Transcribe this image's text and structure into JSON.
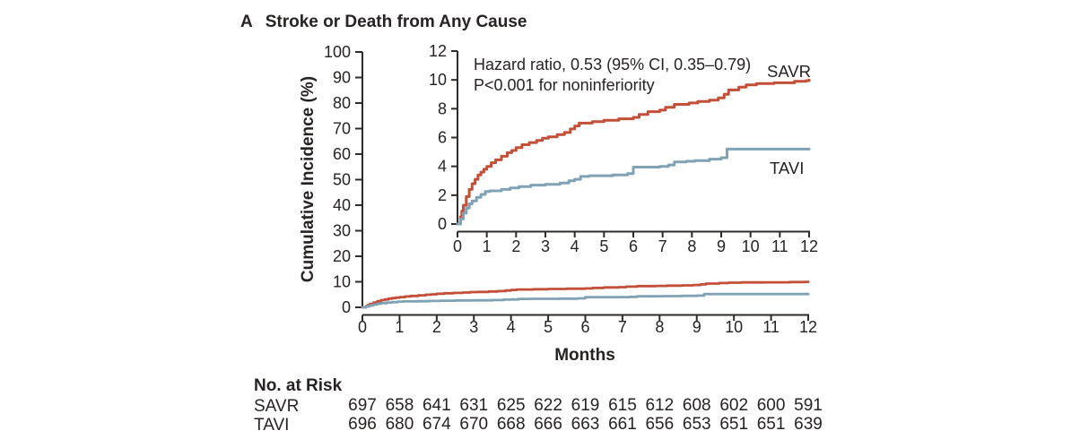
{
  "panel_label": "A",
  "title": "Stroke or Death from Any Cause",
  "annotation": {
    "line1": "Hazard ratio, 0.53 (95% CI, 0.35–0.79)",
    "line2": "P<0.001 for noninferiority"
  },
  "colors": {
    "savr": "#c44f39",
    "tavi": "#7fa3b4",
    "axis": "#2e2b29",
    "text": "#262322"
  },
  "chart_data": {
    "type": "line",
    "step": true,
    "title": "Stroke or Death from Any Cause",
    "xlabel": "Months",
    "ylabel": "Cumulative Incidence (%)",
    "main_axis": {
      "xlim": [
        0,
        12
      ],
      "ylim": [
        0,
        100
      ],
      "xticks": [
        0,
        1,
        2,
        3,
        4,
        5,
        6,
        7,
        8,
        9,
        10,
        11,
        12
      ],
      "yticks": [
        0,
        10,
        20,
        30,
        40,
        50,
        60,
        70,
        80,
        90,
        100
      ]
    },
    "inset_axis": {
      "xlim": [
        0,
        12
      ],
      "ylim": [
        0,
        12
      ],
      "xticks": [
        0,
        1,
        2,
        3,
        4,
        5,
        6,
        7,
        8,
        9,
        10,
        11,
        12
      ],
      "yticks": [
        0,
        2,
        4,
        6,
        8,
        10,
        12
      ]
    },
    "legend_position": "right-of-curves",
    "grid": false,
    "series": [
      {
        "name": "SAVR",
        "color": "#c44f39",
        "points": [
          [
            0,
            0
          ],
          [
            0.1,
            0.5
          ],
          [
            0.15,
            0.9
          ],
          [
            0.2,
            1.3
          ],
          [
            0.3,
            1.9
          ],
          [
            0.4,
            2.4
          ],
          [
            0.5,
            2.8
          ],
          [
            0.6,
            3.1
          ],
          [
            0.7,
            3.4
          ],
          [
            0.8,
            3.6
          ],
          [
            0.9,
            3.8
          ],
          [
            1.0,
            4.0
          ],
          [
            1.15,
            4.25
          ],
          [
            1.3,
            4.45
          ],
          [
            1.5,
            4.7
          ],
          [
            1.7,
            4.95
          ],
          [
            1.85,
            5.1
          ],
          [
            2.0,
            5.3
          ],
          [
            2.2,
            5.5
          ],
          [
            2.45,
            5.65
          ],
          [
            2.7,
            5.8
          ],
          [
            2.9,
            5.95
          ],
          [
            3.1,
            6.05
          ],
          [
            3.4,
            6.2
          ],
          [
            3.65,
            6.35
          ],
          [
            3.85,
            6.6
          ],
          [
            4.0,
            6.8
          ],
          [
            4.15,
            7.0
          ],
          [
            4.6,
            7.1
          ],
          [
            5.0,
            7.2
          ],
          [
            5.5,
            7.3
          ],
          [
            6.0,
            7.4
          ],
          [
            6.2,
            7.6
          ],
          [
            6.5,
            7.8
          ],
          [
            6.9,
            7.9
          ],
          [
            7.1,
            8.1
          ],
          [
            7.4,
            8.3
          ],
          [
            7.9,
            8.4
          ],
          [
            8.2,
            8.5
          ],
          [
            8.6,
            8.6
          ],
          [
            8.9,
            8.75
          ],
          [
            9.1,
            9.0
          ],
          [
            9.25,
            9.3
          ],
          [
            9.6,
            9.5
          ],
          [
            9.85,
            9.65
          ],
          [
            10.2,
            9.75
          ],
          [
            10.8,
            9.8
          ],
          [
            11.5,
            9.9
          ],
          [
            11.9,
            9.95
          ],
          [
            12,
            10.0
          ]
        ]
      },
      {
        "name": "TAVI",
        "color": "#7fa3b4",
        "points": [
          [
            0,
            0
          ],
          [
            0.1,
            0.35
          ],
          [
            0.2,
            0.75
          ],
          [
            0.3,
            1.1
          ],
          [
            0.4,
            1.4
          ],
          [
            0.5,
            1.6
          ],
          [
            0.65,
            1.85
          ],
          [
            0.8,
            2.05
          ],
          [
            0.95,
            2.25
          ],
          [
            1.1,
            2.3
          ],
          [
            1.5,
            2.4
          ],
          [
            1.8,
            2.5
          ],
          [
            2.1,
            2.6
          ],
          [
            2.5,
            2.7
          ],
          [
            3.0,
            2.75
          ],
          [
            3.5,
            2.85
          ],
          [
            3.8,
            3.0
          ],
          [
            4.0,
            3.1
          ],
          [
            4.2,
            3.3
          ],
          [
            4.5,
            3.35
          ],
          [
            5.3,
            3.4
          ],
          [
            5.8,
            3.5
          ],
          [
            6.0,
            3.95
          ],
          [
            6.9,
            4.0
          ],
          [
            7.2,
            4.1
          ],
          [
            7.4,
            4.3
          ],
          [
            7.8,
            4.35
          ],
          [
            8.1,
            4.4
          ],
          [
            8.6,
            4.5
          ],
          [
            9.0,
            4.6
          ],
          [
            9.2,
            5.2
          ],
          [
            12,
            5.2
          ]
        ]
      }
    ]
  },
  "no_at_risk": {
    "heading": "No. at Risk",
    "months": [
      0,
      1,
      2,
      3,
      4,
      5,
      6,
      7,
      8,
      9,
      10,
      11,
      12
    ],
    "rows": [
      {
        "label": "SAVR",
        "values": [
          "697",
          "658",
          "641",
          "631",
          "625",
          "622",
          "619",
          "615",
          "612",
          "608",
          "602",
          "600",
          "591"
        ]
      },
      {
        "label": "TAVI",
        "values": [
          "696",
          "680",
          "674",
          "670",
          "668",
          "666",
          "663",
          "661",
          "656",
          "653",
          "651",
          "651",
          "639"
        ]
      }
    ]
  }
}
